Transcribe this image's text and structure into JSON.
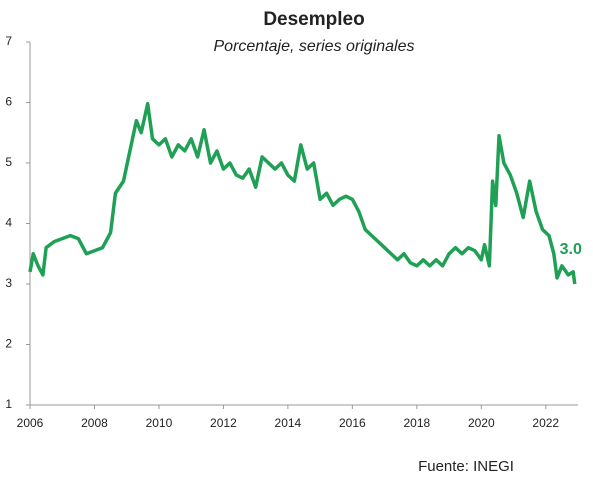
{
  "chart_data": {
    "type": "line",
    "title": "Desempleo",
    "subtitle": "Porcentaje, series originales",
    "source": "Fuente: INEGI",
    "annotation": "3.0",
    "x": [
      2006.0,
      2006.1,
      2006.25,
      2006.4,
      2006.5,
      2006.75,
      2007.0,
      2007.25,
      2007.5,
      2007.75,
      2008.0,
      2008.25,
      2008.5,
      2008.65,
      2008.9,
      2009.1,
      2009.3,
      2009.45,
      2009.65,
      2009.8,
      2010.0,
      2010.2,
      2010.4,
      2010.6,
      2010.8,
      2011.0,
      2011.2,
      2011.4,
      2011.6,
      2011.8,
      2012.0,
      2012.2,
      2012.4,
      2012.6,
      2012.8,
      2013.0,
      2013.2,
      2013.4,
      2013.6,
      2013.8,
      2014.0,
      2014.2,
      2014.4,
      2014.6,
      2014.8,
      2015.0,
      2015.2,
      2015.4,
      2015.6,
      2015.8,
      2016.0,
      2016.2,
      2016.4,
      2016.6,
      2016.8,
      2017.0,
      2017.2,
      2017.4,
      2017.6,
      2017.8,
      2018.0,
      2018.2,
      2018.4,
      2018.6,
      2018.8,
      2019.0,
      2019.2,
      2019.4,
      2019.6,
      2019.8,
      2020.0,
      2020.1,
      2020.25,
      2020.35,
      2020.45,
      2020.55,
      2020.7,
      2020.9,
      2021.1,
      2021.3,
      2021.5,
      2021.7,
      2021.9,
      2022.1,
      2022.25,
      2022.35,
      2022.5,
      2022.7,
      2022.85,
      2022.9
    ],
    "series": [
      {
        "name": "Desempleo",
        "color": "#1fa055",
        "values": [
          3.2,
          3.5,
          3.3,
          3.15,
          3.6,
          3.7,
          3.75,
          3.8,
          3.75,
          3.5,
          3.55,
          3.6,
          3.85,
          4.5,
          4.7,
          5.2,
          5.7,
          5.5,
          5.98,
          5.4,
          5.3,
          5.4,
          5.1,
          5.3,
          5.2,
          5.4,
          5.1,
          5.55,
          5.0,
          5.2,
          4.9,
          5.0,
          4.8,
          4.75,
          4.9,
          4.6,
          5.1,
          5.0,
          4.9,
          5.0,
          4.8,
          4.7,
          5.3,
          4.9,
          5.0,
          4.4,
          4.5,
          4.3,
          4.4,
          4.45,
          4.4,
          4.2,
          3.9,
          3.8,
          3.7,
          3.6,
          3.5,
          3.4,
          3.5,
          3.35,
          3.3,
          3.4,
          3.3,
          3.4,
          3.3,
          3.5,
          3.6,
          3.5,
          3.6,
          3.55,
          3.4,
          3.65,
          3.3,
          4.7,
          4.3,
          5.45,
          5.0,
          4.8,
          4.5,
          4.1,
          4.7,
          4.2,
          3.9,
          3.8,
          3.5,
          3.1,
          3.3,
          3.15,
          3.2,
          3.0
        ]
      }
    ],
    "xlim": [
      2006,
      2023
    ],
    "xticks": [
      2006,
      2008,
      2010,
      2012,
      2014,
      2016,
      2018,
      2020,
      2022
    ],
    "ylim": [
      1,
      7
    ],
    "yticks": [
      1,
      2,
      3,
      4,
      5,
      6,
      7
    ],
    "grid": false
  }
}
